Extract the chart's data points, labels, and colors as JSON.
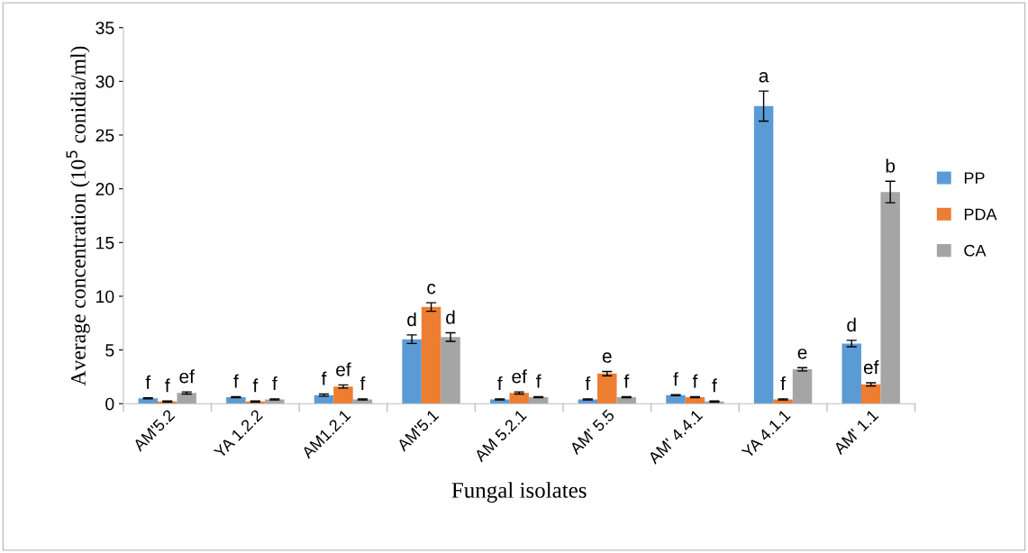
{
  "chart_data": {
    "type": "bar",
    "xlabel": "Fungal isolates",
    "ylabel": "Average concentration (10$^{5}$ conidia/ml)",
    "categories": [
      "AM'5.2",
      "YA 1.2.2",
      "AM1.2.1",
      "AM'5.1",
      "AM 5.2.1",
      "AM' 5.5",
      "AM' 4.4.1",
      "YA 4.1.1",
      "AM' 1.1"
    ],
    "series": [
      {
        "name": "PP",
        "color": "#5b9bd5",
        "values": [
          0.5,
          0.6,
          0.8,
          6.0,
          0.4,
          0.4,
          0.8,
          27.7,
          5.6
        ],
        "errors": [
          0.05,
          0.05,
          0.1,
          0.4,
          0.05,
          0.05,
          0.05,
          1.4,
          0.3
        ]
      },
      {
        "name": "PDA",
        "color": "#ed7d31",
        "values": [
          0.2,
          0.2,
          1.6,
          9.0,
          1.0,
          2.8,
          0.6,
          0.4,
          1.8
        ],
        "errors": [
          0.05,
          0.05,
          0.15,
          0.4,
          0.1,
          0.2,
          0.05,
          0.05,
          0.15
        ]
      },
      {
        "name": "CA",
        "color": "#a5a5a5",
        "values": [
          1.0,
          0.4,
          0.4,
          6.2,
          0.6,
          0.6,
          0.2,
          3.2,
          19.7
        ],
        "errors": [
          0.1,
          0.05,
          0.05,
          0.4,
          0.05,
          0.05,
          0.05,
          0.15,
          1.0
        ]
      }
    ],
    "annotations": [
      "f",
      "f",
      "ef",
      "f",
      "f",
      "f",
      "f",
      "ef",
      "f",
      "d",
      "c",
      "d",
      "f",
      "ef",
      "f",
      "f",
      "e",
      "f",
      "f",
      "f",
      "f",
      "a",
      "f",
      "e",
      "d",
      "ef",
      "b"
    ],
    "ylim": [
      0,
      35
    ],
    "yticks": [
      0,
      5,
      10,
      15,
      20,
      25,
      30,
      35
    ],
    "grid": false,
    "legend": "right"
  }
}
